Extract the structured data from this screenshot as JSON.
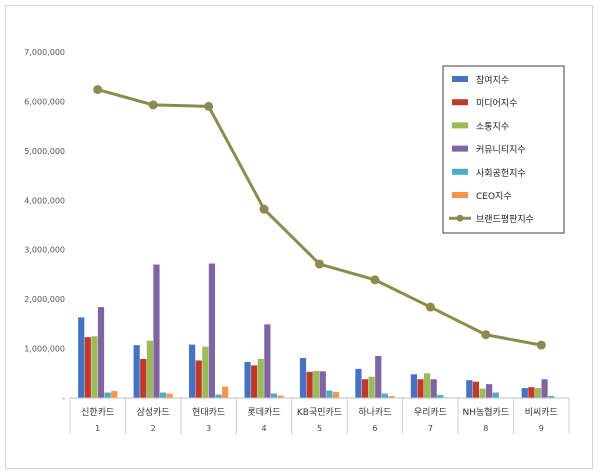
{
  "chart_data": {
    "type": "bar",
    "categories": [
      "신한카드",
      "삼성카드",
      "현대카드",
      "롯데카드",
      "KB국민카드",
      "하나카드",
      "우리카드",
      "NH농협카드",
      "비씨카드"
    ],
    "category_numbers": [
      "1",
      "2",
      "3",
      "4",
      "5",
      "6",
      "7",
      "8",
      "9"
    ],
    "ylim": [
      0,
      7000000
    ],
    "yticks": [
      0,
      1000000,
      2000000,
      3000000,
      4000000,
      5000000,
      6000000,
      7000000
    ],
    "ytick_labels": [
      "-",
      "1,000,000",
      "2,000,000",
      "3,000,000",
      "4,000,000",
      "5,000,000",
      "6,000,000",
      "7,000,000"
    ],
    "grid": false,
    "legend_position": "top-right",
    "series": [
      {
        "name": "참여지수",
        "type": "bar",
        "color": "#4472C4",
        "values": [
          1630000,
          1070000,
          1080000,
          730000,
          810000,
          590000,
          480000,
          360000,
          200000
        ]
      },
      {
        "name": "미디어지수",
        "type": "bar",
        "color": "#C0392B",
        "values": [
          1230000,
          790000,
          760000,
          660000,
          530000,
          380000,
          380000,
          330000,
          220000
        ]
      },
      {
        "name": "소통지수",
        "type": "bar",
        "color": "#9BBB59",
        "values": [
          1250000,
          1160000,
          1040000,
          790000,
          550000,
          430000,
          500000,
          190000,
          200000
        ]
      },
      {
        "name": "커뮤니티지수",
        "type": "bar",
        "color": "#8064A2",
        "values": [
          1840000,
          2700000,
          2720000,
          1490000,
          540000,
          850000,
          380000,
          280000,
          380000
        ]
      },
      {
        "name": "사회공헌지수",
        "type": "bar",
        "color": "#4BACC6",
        "values": [
          110000,
          110000,
          70000,
          90000,
          150000,
          90000,
          60000,
          110000,
          40000
        ]
      },
      {
        "name": "CEO지수",
        "type": "bar",
        "color": "#F79646",
        "values": [
          140000,
          90000,
          230000,
          50000,
          120000,
          40000,
          10000,
          10000,
          10000
        ]
      },
      {
        "name": "브랜드평판지수",
        "type": "line",
        "color": "#8C8A4C",
        "values": [
          6240000,
          5930000,
          5900000,
          3820000,
          2710000,
          2390000,
          1840000,
          1280000,
          1070000
        ]
      }
    ]
  }
}
